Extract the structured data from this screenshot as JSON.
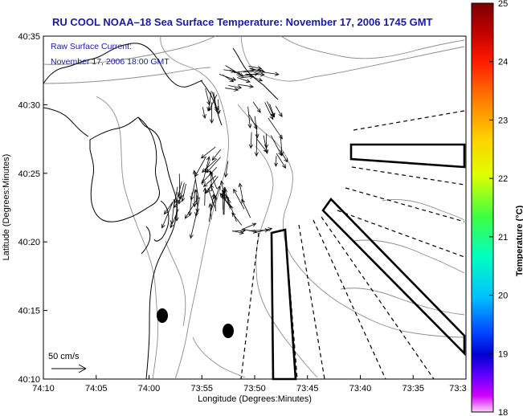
{
  "title": "RU COOL  NOAA–18  Sea Surface Temperature:  November 17, 2006 1745 GMT",
  "subtitle_line1": "Raw Surface Current:",
  "subtitle_line2": "November 17, 2006 18:00 GMT",
  "xlabel": "Longitude (Degrees:Minutes)",
  "ylabel": "Latitude (Degrees:Minutes)",
  "x_ticks": [
    "74:10",
    "74:05",
    "74:00",
    "73:55",
    "73:50",
    "73:45",
    "73:40",
    "73:35",
    "73:3"
  ],
  "y_ticks": [
    "40:35",
    "40:30",
    "40:25",
    "40:20",
    "40:15",
    "40:10"
  ],
  "scale_label": "50 cm/s",
  "colorbar": {
    "label": "Temperature (°C)",
    "ticks": [
      "25",
      "24",
      "23",
      "22",
      "21",
      "20",
      "19",
      "18"
    ],
    "min": 18,
    "max": 25
  },
  "colors": {
    "title": "#1a1aa6",
    "land_outline": "#000000",
    "contour": "#8c8c8c"
  },
  "chart_data": {
    "type": "map",
    "xlim": [
      "74:10",
      "73:3"
    ],
    "ylim": [
      "40:10",
      "40:35"
    ],
    "grid": false,
    "legend": "colorbar right",
    "vectors_shown": true,
    "markers": [
      "filled ellipse",
      "filled ellipse"
    ]
  }
}
